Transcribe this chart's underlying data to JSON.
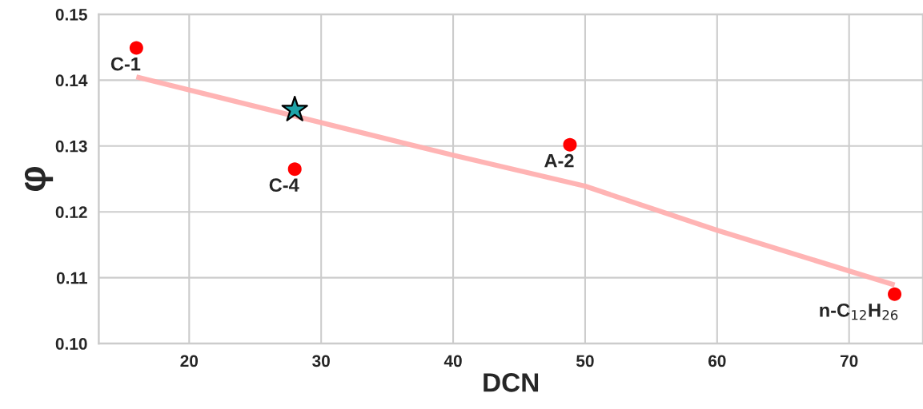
{
  "chart_data": {
    "type": "scatter",
    "xlabel": "DCN",
    "ylabel": "φ",
    "xlim": [
      13.15,
      75.6
    ],
    "ylim": [
      0.1,
      0.15
    ],
    "xticks": [
      20,
      30,
      40,
      50,
      60,
      70
    ],
    "yticks": [
      {
        "value": 0.1,
        "label": "0.10"
      },
      {
        "value": 0.11,
        "label": "0.11"
      },
      {
        "value": 0.12,
        "label": "0.12"
      },
      {
        "value": 0.13,
        "label": "0.13"
      },
      {
        "value": 0.14,
        "label": "0.14"
      },
      {
        "value": 0.15,
        "label": "0.15"
      }
    ],
    "grid": true,
    "legend": false,
    "series": [
      {
        "type": "line",
        "color": "#ffb0b0",
        "marker": "none",
        "line_style": "solid",
        "x": [
          16.0,
          40.0,
          50.0,
          60.0,
          73.45
        ],
        "values": [
          0.1405,
          0.1286,
          0.1239,
          0.1172,
          0.1089
        ]
      },
      {
        "color": "#ff0000",
        "marker": "circle",
        "x": [
          16.0,
          28.0,
          48.85,
          73.45
        ],
        "values": [
          0.1449,
          0.1265,
          0.1302,
          0.1075
        ]
      },
      {
        "color": "#1fa3a8",
        "marker": "star",
        "x": [
          28.0
        ],
        "values": [
          0.1355
        ]
      }
    ],
    "annotations": [
      {
        "text": "C-1",
        "x": 16.0,
        "y": 0.1449
      },
      {
        "text": "C-4",
        "x": 28.0,
        "y": 0.1265
      },
      {
        "text": "A-2",
        "x": 48.85,
        "y": 0.1302
      },
      {
        "text": "n-C$_{12}$H$_{26}$",
        "x": 73.45,
        "y": 0.1075
      }
    ]
  }
}
